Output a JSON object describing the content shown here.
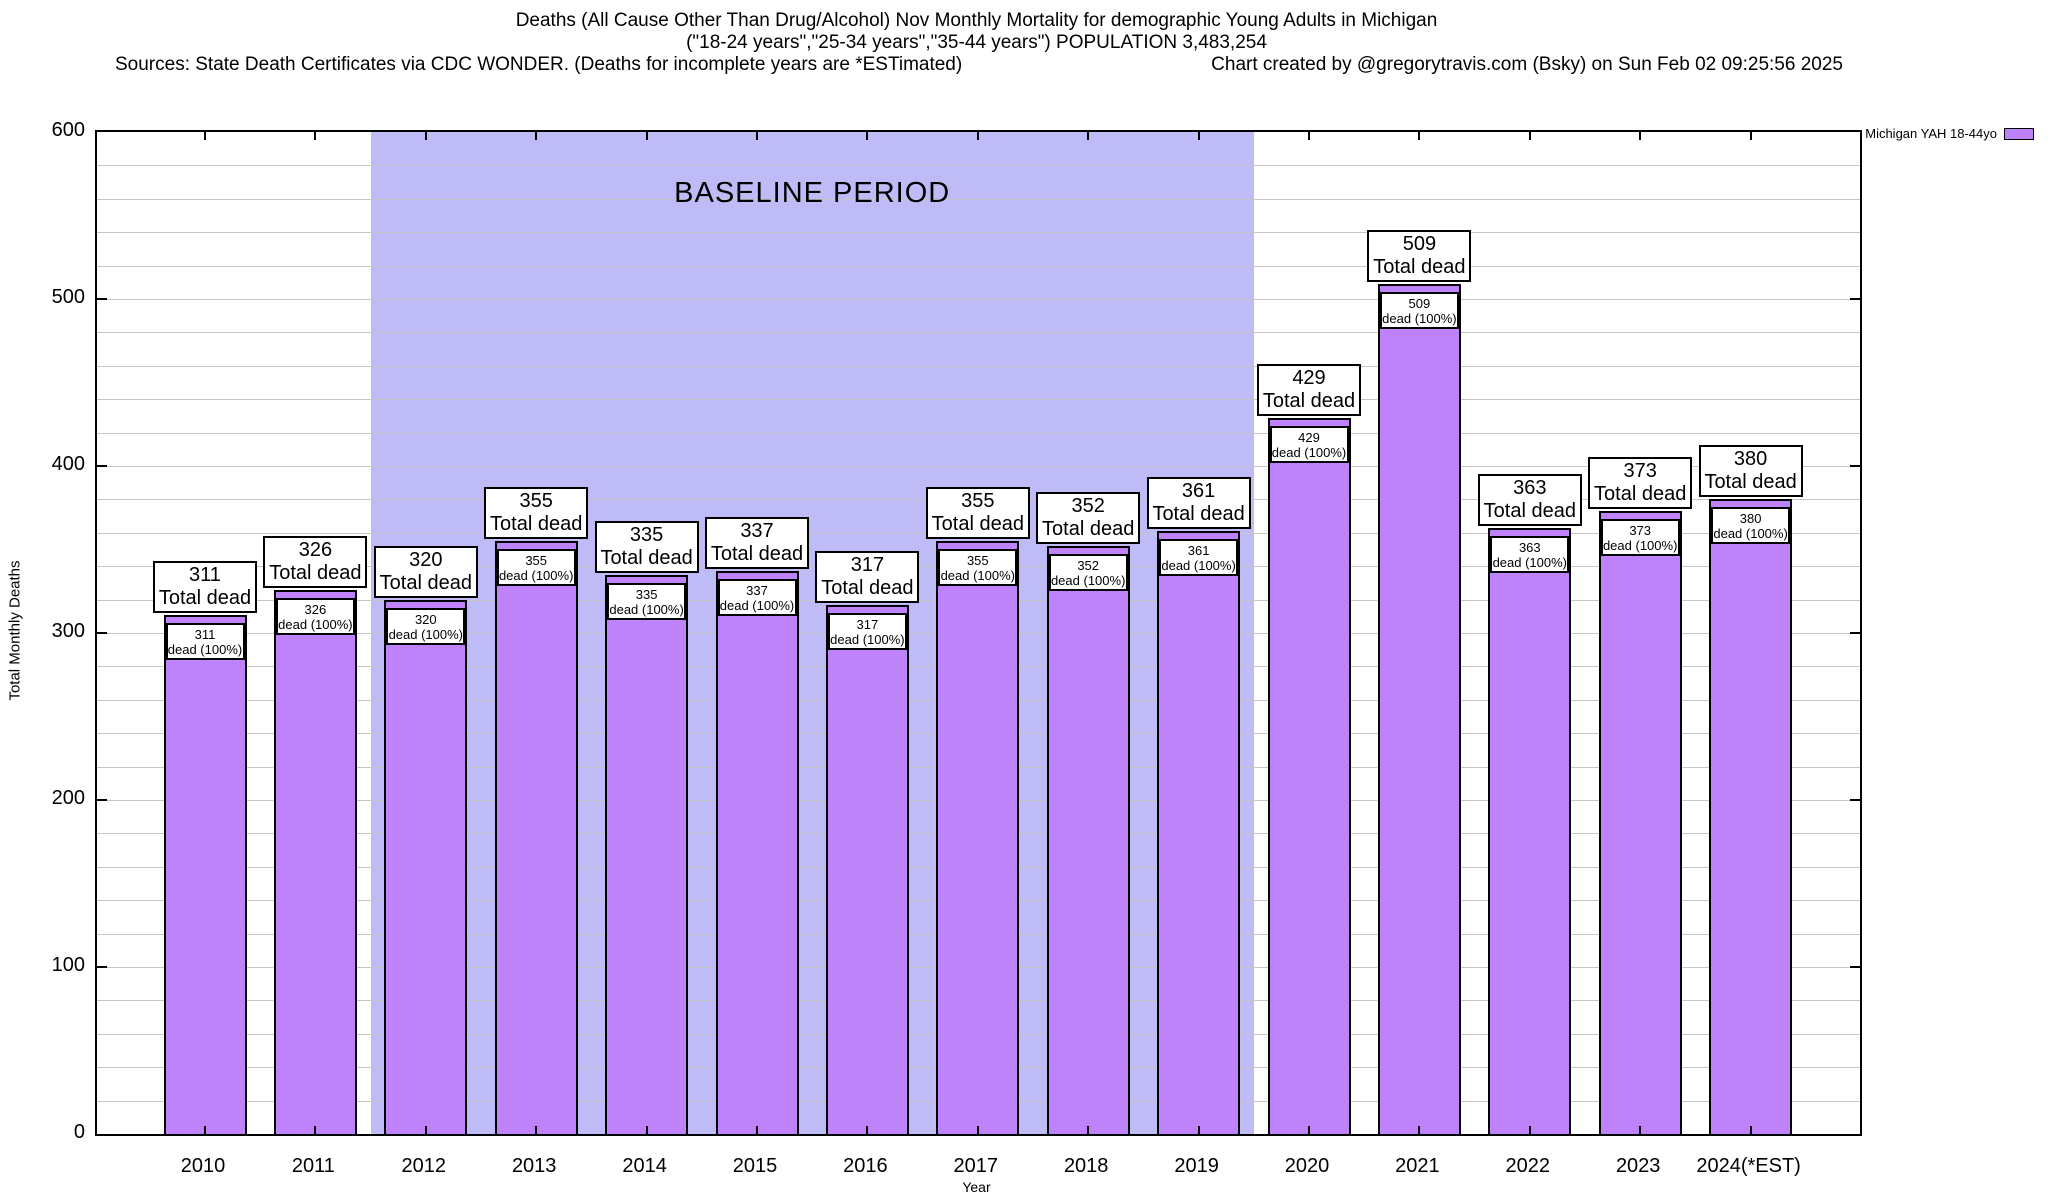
{
  "header": {
    "title_line1": "Deaths (All Cause Other Than Drug/Alcohol) Nov Monthly Mortality for demographic Young Adults in Michigan",
    "title_line2": "(\"18-24 years\",\"25-34 years\",\"35-44 years\") POPULATION 3,483,254",
    "sources": "Sources: State Death Certificates via CDC WONDER. (Deaths for incomplete years are *ESTimated)",
    "credit": "Chart created by @gregorytravis.com (Bsky) on Sun Feb 02 09:25:56 2025"
  },
  "legend": {
    "label": "Michigan YAH 18-44yo"
  },
  "chart_data": {
    "type": "bar",
    "title": "Deaths (All Cause Other Than Drug/Alcohol) Nov Monthly Mortality for demographic Young Adults in Michigan (\"18-24 years\",\"25-34 years\",\"35-44 years\") POPULATION 3,483,254",
    "xlabel": "Year",
    "ylabel": "Total Monthly Deaths",
    "ylim": [
      0,
      600
    ],
    "ytick_step": 100,
    "grid_minor_step": 20,
    "grid": true,
    "categories": [
      "2010",
      "2011",
      "2012",
      "2013",
      "2014",
      "2015",
      "2016",
      "2017",
      "2018",
      "2019",
      "2020",
      "2021",
      "2022",
      "2023",
      "2024(*EST)"
    ],
    "series": [
      {
        "name": "Michigan YAH 18-44yo",
        "values": [
          311,
          326,
          320,
          355,
          335,
          337,
          317,
          355,
          352,
          361,
          429,
          509,
          363,
          373,
          380
        ]
      }
    ],
    "bar_color": "#be82fa",
    "bar_border_color": "#000000",
    "total_label_line2": "Total dead",
    "inner_label_line2": "dead (100%)",
    "baseline_band": {
      "label": "BASELINE PERIOD",
      "from_index": 1.5,
      "to_index": 9.5,
      "color": "#bfbbf7"
    },
    "legend_position": "top-right-outside"
  }
}
